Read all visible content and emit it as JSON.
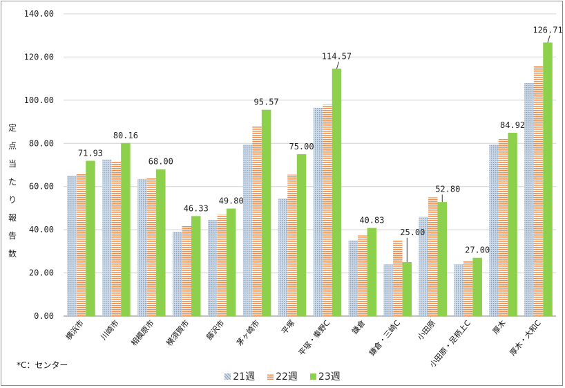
{
  "chart_data": {
    "type": "bar",
    "ylabel": "定点当たり報告数",
    "ylim": [
      0,
      140
    ],
    "yticks": [
      "0.00",
      "20.00",
      "40.00",
      "60.00",
      "80.00",
      "100.00",
      "120.00",
      "140.00"
    ],
    "grid": true,
    "legend_position": "bottom",
    "categories": [
      "横浜市",
      "川崎市",
      "相模原市",
      "横須賀市",
      "藤沢市",
      "茅ヶ崎市",
      "平塚",
      "平塚・秦野C",
      "鎌倉",
      "鎌倉・三崎C",
      "小田原",
      "小田原・足柄上C",
      "厚木",
      "厚木・大和C"
    ],
    "series": [
      {
        "name": "21週",
        "color": "#a9bcd0",
        "pattern": "dots",
        "values": [
          65.0,
          72.5,
          63.5,
          39.0,
          44.5,
          79.5,
          54.5,
          96.5,
          35.0,
          24.0,
          46.0,
          24.0,
          79.5,
          108.0
        ]
      },
      {
        "name": "22週",
        "color": "#f2a36b",
        "pattern": "stripes",
        "values": [
          66.0,
          71.5,
          64.0,
          42.0,
          47.0,
          88.0,
          65.5,
          98.0,
          37.5,
          35.0,
          55.0,
          25.5,
          82.0,
          116.0
        ]
      },
      {
        "name": "23週",
        "color": "#8cd04b",
        "pattern": "solid",
        "values": [
          71.93,
          80.16,
          68.0,
          46.33,
          49.8,
          95.57,
          75.0,
          114.57,
          40.83,
          25.0,
          52.8,
          27.0,
          84.92,
          126.71
        ]
      }
    ],
    "data_labels": [
      "71.93",
      "80.16",
      "68.00",
      "46.33",
      "49.80",
      "95.57",
      "75.00",
      "114.57",
      "40.83",
      "25.00",
      "52.80",
      "27.00",
      "84.92",
      "126.71"
    ]
  },
  "footnote": "*C：センター"
}
